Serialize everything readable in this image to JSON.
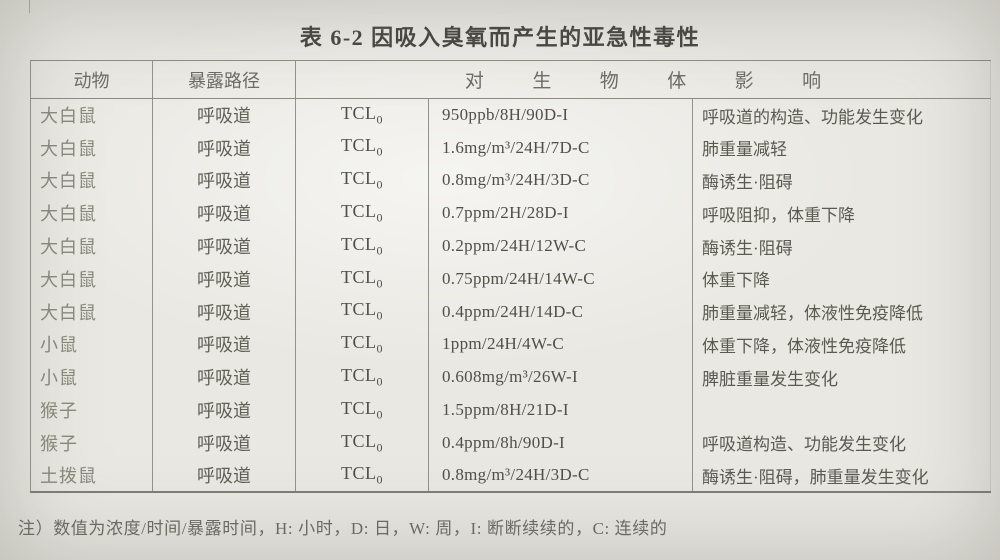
{
  "title": "表 6-2 因吸入臭氧而产生的亚急性毒性",
  "table": {
    "headers": {
      "animal": "动物",
      "route": "暴露路径",
      "effect_span": "对生物体影响"
    },
    "rows": [
      {
        "animal": "大白鼠",
        "route": "呼吸道",
        "tcl": "TCL",
        "tcl_sub": "0",
        "value": "950ppb/8H/90D-I",
        "effect": "呼吸道的构造、功能发生变化"
      },
      {
        "animal": "大白鼠",
        "route": "呼吸道",
        "tcl": "TCL",
        "tcl_sub": "0",
        "value": "1.6mg/m³/24H/7D-C",
        "effect": "肺重量减轻"
      },
      {
        "animal": "大白鼠",
        "route": "呼吸道",
        "tcl": "TCL",
        "tcl_sub": "0",
        "value": "0.8mg/m³/24H/3D-C",
        "effect": "酶诱生·阻碍"
      },
      {
        "animal": "大白鼠",
        "route": "呼吸道",
        "tcl": "TCL",
        "tcl_sub": "0",
        "value": "0.7ppm/2H/28D-I",
        "effect": "呼吸阻抑，体重下降"
      },
      {
        "animal": "大白鼠",
        "route": "呼吸道",
        "tcl": "TCL",
        "tcl_sub": "0",
        "value": "0.2ppm/24H/12W-C",
        "effect": "酶诱生·阻碍"
      },
      {
        "animal": "大白鼠",
        "route": "呼吸道",
        "tcl": "TCL",
        "tcl_sub": "0",
        "value": "0.75ppm/24H/14W-C",
        "effect": "体重下降"
      },
      {
        "animal": "大白鼠",
        "route": "呼吸道",
        "tcl": "TCL",
        "tcl_sub": "0",
        "value": "0.4ppm/24H/14D-C",
        "effect": "肺重量减轻，体液性免疫降低"
      },
      {
        "animal": "小鼠",
        "route": "呼吸道",
        "tcl": "TCL",
        "tcl_sub": "0",
        "value": "1ppm/24H/4W-C",
        "effect": "体重下降，体液性免疫降低"
      },
      {
        "animal": "小鼠",
        "route": "呼吸道",
        "tcl": "TCL",
        "tcl_sub": "0",
        "value": "0.608mg/m³/26W-I",
        "effect": "脾脏重量发生变化"
      },
      {
        "animal": "猴子",
        "route": "呼吸道",
        "tcl": "TCL",
        "tcl_sub": "0",
        "value": "1.5ppm/8H/21D-I",
        "effect": ""
      },
      {
        "animal": "猴子",
        "route": "呼吸道",
        "tcl": "TCL",
        "tcl_sub": "0",
        "value": "0.4ppm/8h/90D-I",
        "effect": "呼吸道构造、功能发生变化"
      },
      {
        "animal": "土拨鼠",
        "route": "呼吸道",
        "tcl": "TCL",
        "tcl_sub": "0",
        "value": "0.8mg/m³/24H/3D-C",
        "effect": "酶诱生·阻碍，肺重量发生变化"
      }
    ]
  },
  "footnote": "注）数值为浓度/时间/暴露时间，H: 小时，D: 日，W: 周，I: 断断续续的，C: 连续的"
}
